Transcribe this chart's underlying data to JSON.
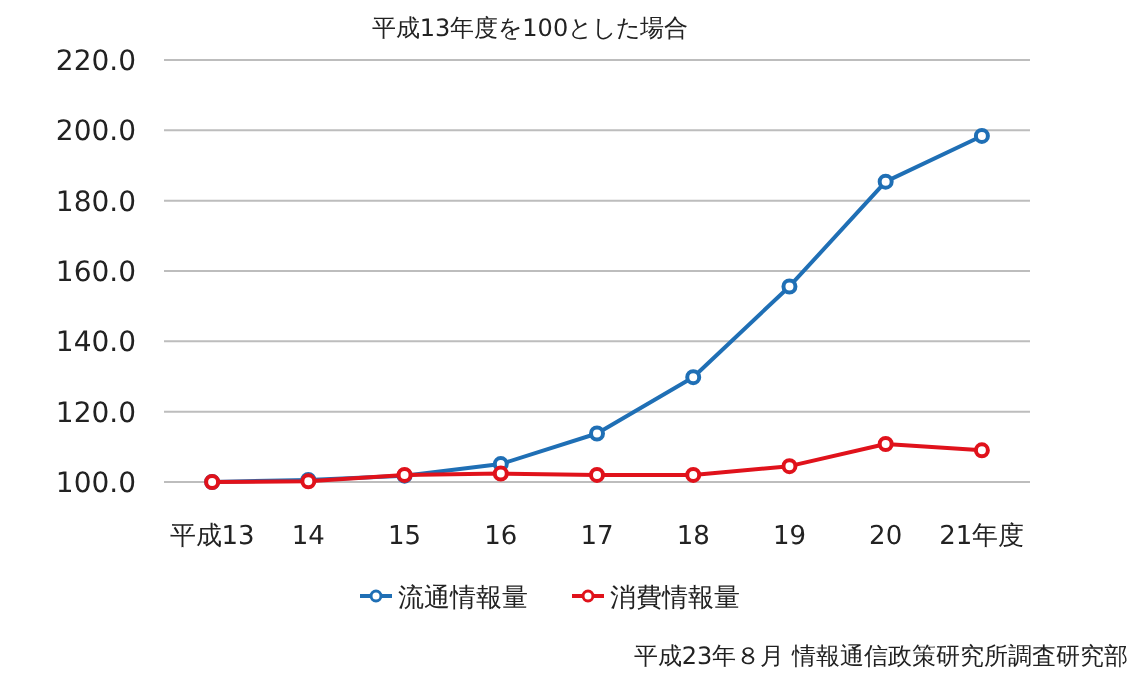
{
  "chart_data": {
    "type": "line",
    "title": "平成13年度を100とした場合",
    "categories": [
      "平成13",
      "14",
      "15",
      "16",
      "17",
      "18",
      "19",
      "20",
      "21年度"
    ],
    "series": [
      {
        "name": "流通情報量",
        "color": "#1f6fb5",
        "values": [
          100,
          100.6,
          101.8,
          105.1,
          113.8,
          129.8,
          155.6,
          185.4,
          198.4
        ]
      },
      {
        "name": "消費情報量",
        "color": "#e0121b",
        "values": [
          100,
          100.2,
          102.0,
          102.4,
          102.0,
          102.0,
          104.5,
          110.8,
          109.0
        ]
      }
    ],
    "ylim": [
      100,
      220
    ],
    "yticks": [
      {
        "value": 100,
        "label": "100.0"
      },
      {
        "value": 120,
        "label": "120.0"
      },
      {
        "value": 140,
        "label": "140.0"
      },
      {
        "value": 160,
        "label": "160.0"
      },
      {
        "value": 180,
        "label": "180.0"
      },
      {
        "value": 200,
        "label": "200.0"
      },
      {
        "value": 220,
        "label": "220.0"
      }
    ],
    "grid": "y",
    "legend": "bottom",
    "marker": "circle",
    "line_style": "solid",
    "annotations": [
      "平成23年８月 情報通信政策研究所調査研究部"
    ]
  }
}
